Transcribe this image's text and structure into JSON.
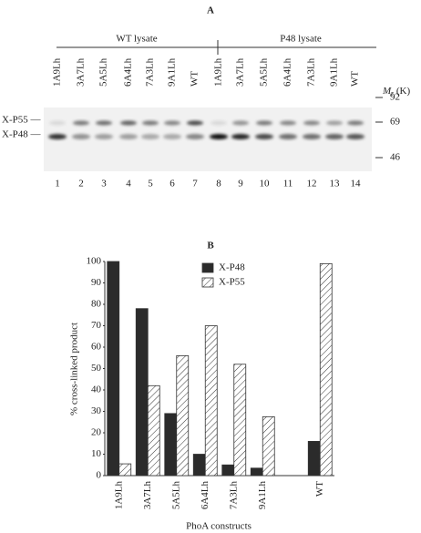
{
  "panel_a": {
    "label": "A",
    "groups": [
      "WT lysate",
      "P48 lysate"
    ],
    "lanes": [
      "1A9Lh",
      "3A7Lh",
      "5A5Lh",
      "6A4Lh",
      "7A3Lh",
      "9A1Lh",
      "WT",
      "1A9Lh",
      "3A7Lh",
      "5A5Lh",
      "6A4Lh",
      "7A3Lh",
      "9A1Lh",
      "WT"
    ],
    "lane_numbers": [
      "1",
      "2",
      "3",
      "4",
      "5",
      "6",
      "7",
      "8",
      "9",
      "10",
      "11",
      "12",
      "13",
      "14"
    ],
    "mr_symbol": "M",
    "mr_subscript": "r",
    "mr_unit": "(K)",
    "markers": [
      "92",
      "69",
      "46"
    ],
    "band_labels": [
      "X-P55 —",
      "X-P48 —"
    ]
  },
  "chart_data": {
    "type": "bar",
    "panel_label": "B",
    "x_label": "PhoA constructs",
    "y_label": "% cross-linked product",
    "categories": [
      "1A9Lh",
      "3A7Lh",
      "5A5Lh",
      "6A4Lh",
      "7A3Lh",
      "9A1Lh",
      null,
      "WT"
    ],
    "series": [
      {
        "name": "X-P48",
        "color": "#2b2b2b",
        "values": [
          100,
          78,
          29,
          10,
          5,
          3.5,
          null,
          16
        ]
      },
      {
        "name": "X-P55",
        "color": "hatch",
        "values": [
          5.5,
          42,
          56,
          70,
          52,
          27.5,
          null,
          99
        ]
      }
    ],
    "ylim": [
      0,
      100
    ],
    "yticks": [
      0,
      10,
      20,
      30,
      40,
      50,
      60,
      70,
      80,
      90,
      100
    ],
    "grid": false
  }
}
